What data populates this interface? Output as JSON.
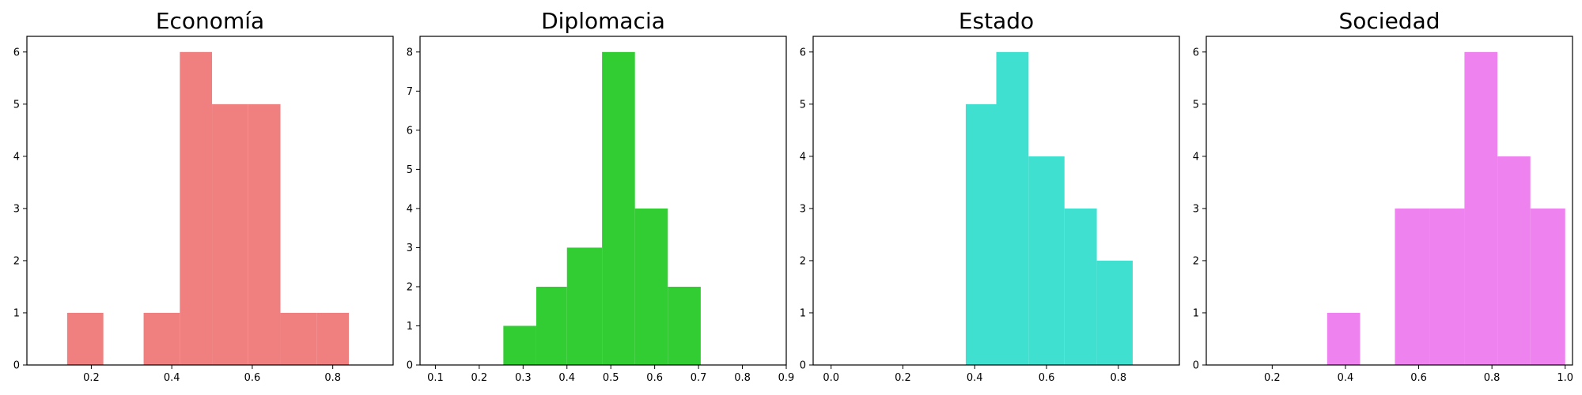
{
  "chart_data": [
    {
      "type": "bar",
      "subtype": "histogram",
      "title": "Economía",
      "color": "#f08080",
      "xlim": [
        0.04,
        0.95
      ],
      "ylim": [
        0,
        6.3
      ],
      "xticks": [
        0.2,
        0.4,
        0.6,
        0.8
      ],
      "xtick_labels": [
        "0.2",
        "0.4",
        "0.6",
        "0.8"
      ],
      "yticks": [
        0,
        1,
        2,
        3,
        4,
        5,
        6
      ],
      "ytick_labels": [
        "0",
        "1",
        "2",
        "3",
        "4",
        "5",
        "6"
      ],
      "bins": [
        {
          "x0": 0.14,
          "x1": 0.23,
          "count": 1
        },
        {
          "x0": 0.23,
          "x1": 0.33,
          "count": 0
        },
        {
          "x0": 0.33,
          "x1": 0.42,
          "count": 1
        },
        {
          "x0": 0.42,
          "x1": 0.5,
          "count": 6
        },
        {
          "x0": 0.5,
          "x1": 0.59,
          "count": 5
        },
        {
          "x0": 0.59,
          "x1": 0.67,
          "count": 5
        },
        {
          "x0": 0.67,
          "x1": 0.76,
          "count": 1
        },
        {
          "x0": 0.76,
          "x1": 0.84,
          "count": 1
        }
      ]
    },
    {
      "type": "bar",
      "subtype": "histogram",
      "title": "Diplomacia",
      "color": "#32cd32",
      "xlim": [
        0.065,
        0.9
      ],
      "ylim": [
        0,
        8.4
      ],
      "xticks": [
        0.1,
        0.2,
        0.3,
        0.4,
        0.5,
        0.6,
        0.7,
        0.8,
        0.9
      ],
      "xtick_labels": [
        "0.1",
        "0.2",
        "0.3",
        "0.4",
        "0.5",
        "0.6",
        "0.7",
        "0.8",
        "0.9"
      ],
      "yticks": [
        0,
        1,
        2,
        3,
        4,
        5,
        6,
        7,
        8
      ],
      "ytick_labels": [
        "0",
        "1",
        "2",
        "3",
        "4",
        "5",
        "6",
        "7",
        "8"
      ],
      "bins": [
        {
          "x0": 0.255,
          "x1": 0.33,
          "count": 1
        },
        {
          "x0": 0.33,
          "x1": 0.4,
          "count": 2
        },
        {
          "x0": 0.4,
          "x1": 0.48,
          "count": 3
        },
        {
          "x0": 0.48,
          "x1": 0.555,
          "count": 8
        },
        {
          "x0": 0.555,
          "x1": 0.63,
          "count": 4
        },
        {
          "x0": 0.63,
          "x1": 0.705,
          "count": 2
        }
      ]
    },
    {
      "type": "bar",
      "subtype": "histogram",
      "title": "Estado",
      "color": "#40e0d0",
      "xlim": [
        -0.05,
        0.97
      ],
      "ylim": [
        0,
        6.3
      ],
      "xticks": [
        0.0,
        0.2,
        0.4,
        0.6,
        0.8
      ],
      "xtick_labels": [
        "0.0",
        "0.2",
        "0.4",
        "0.6",
        "0.8"
      ],
      "yticks": [
        0,
        1,
        2,
        3,
        4,
        5,
        6
      ],
      "ytick_labels": [
        "0",
        "1",
        "2",
        "3",
        "4",
        "5",
        "6"
      ],
      "bins": [
        {
          "x0": 0.375,
          "x1": 0.46,
          "count": 5
        },
        {
          "x0": 0.46,
          "x1": 0.55,
          "count": 6
        },
        {
          "x0": 0.55,
          "x1": 0.65,
          "count": 4
        },
        {
          "x0": 0.65,
          "x1": 0.74,
          "count": 3
        },
        {
          "x0": 0.74,
          "x1": 0.84,
          "count": 2
        }
      ]
    },
    {
      "type": "bar",
      "subtype": "histogram",
      "title": "Sociedad",
      "color": "#ee82ee",
      "xlim": [
        0.02,
        1.02
      ],
      "ylim": [
        0,
        6.3
      ],
      "xticks": [
        0.2,
        0.4,
        0.6,
        0.8,
        1.0
      ],
      "xtick_labels": [
        "0.2",
        "0.4",
        "0.6",
        "0.8",
        "1.0"
      ],
      "yticks": [
        0,
        1,
        2,
        3,
        4,
        5,
        6
      ],
      "ytick_labels": [
        "0",
        "1",
        "2",
        "3",
        "4",
        "5",
        "6"
      ],
      "bins": [
        {
          "x0": 0.35,
          "x1": 0.44,
          "count": 1
        },
        {
          "x0": 0.44,
          "x1": 0.535,
          "count": 0
        },
        {
          "x0": 0.535,
          "x1": 0.63,
          "count": 3
        },
        {
          "x0": 0.63,
          "x1": 0.725,
          "count": 3
        },
        {
          "x0": 0.725,
          "x1": 0.815,
          "count": 6
        },
        {
          "x0": 0.815,
          "x1": 0.905,
          "count": 4
        },
        {
          "x0": 0.905,
          "x1": 1.0,
          "count": 3
        }
      ]
    }
  ]
}
